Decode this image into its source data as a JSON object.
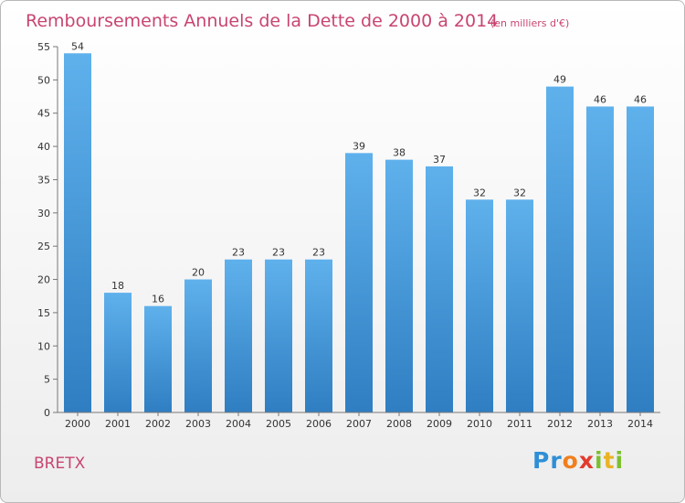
{
  "chart_data": {
    "type": "bar",
    "title": "Remboursements Annuels de la Dette de 2000 à 2014",
    "subtitle": "(en milliers d'€)",
    "categories": [
      "2000",
      "2001",
      "2002",
      "2003",
      "2004",
      "2005",
      "2006",
      "2007",
      "2008",
      "2009",
      "2010",
      "2011",
      "2012",
      "2013",
      "2014"
    ],
    "values": [
      54,
      18,
      16,
      20,
      23,
      23,
      23,
      39,
      38,
      37,
      32,
      32,
      49,
      46,
      46
    ],
    "ylim": [
      0,
      55
    ],
    "yticks": [
      0,
      5,
      10,
      15,
      20,
      25,
      30,
      35,
      40,
      45,
      50,
      55
    ],
    "grid": false,
    "bar_color": "#4a9ee0"
  },
  "commune": "BRETX",
  "logo": {
    "letters": [
      "P",
      "r",
      "o",
      "x",
      "i",
      "t",
      "i"
    ],
    "colors": [
      "#2e8fd6",
      "#2e8fd6",
      "#f07f1e",
      "#e23b2e",
      "#7cbf2f",
      "#e9b324",
      "#7cbf2f"
    ]
  }
}
